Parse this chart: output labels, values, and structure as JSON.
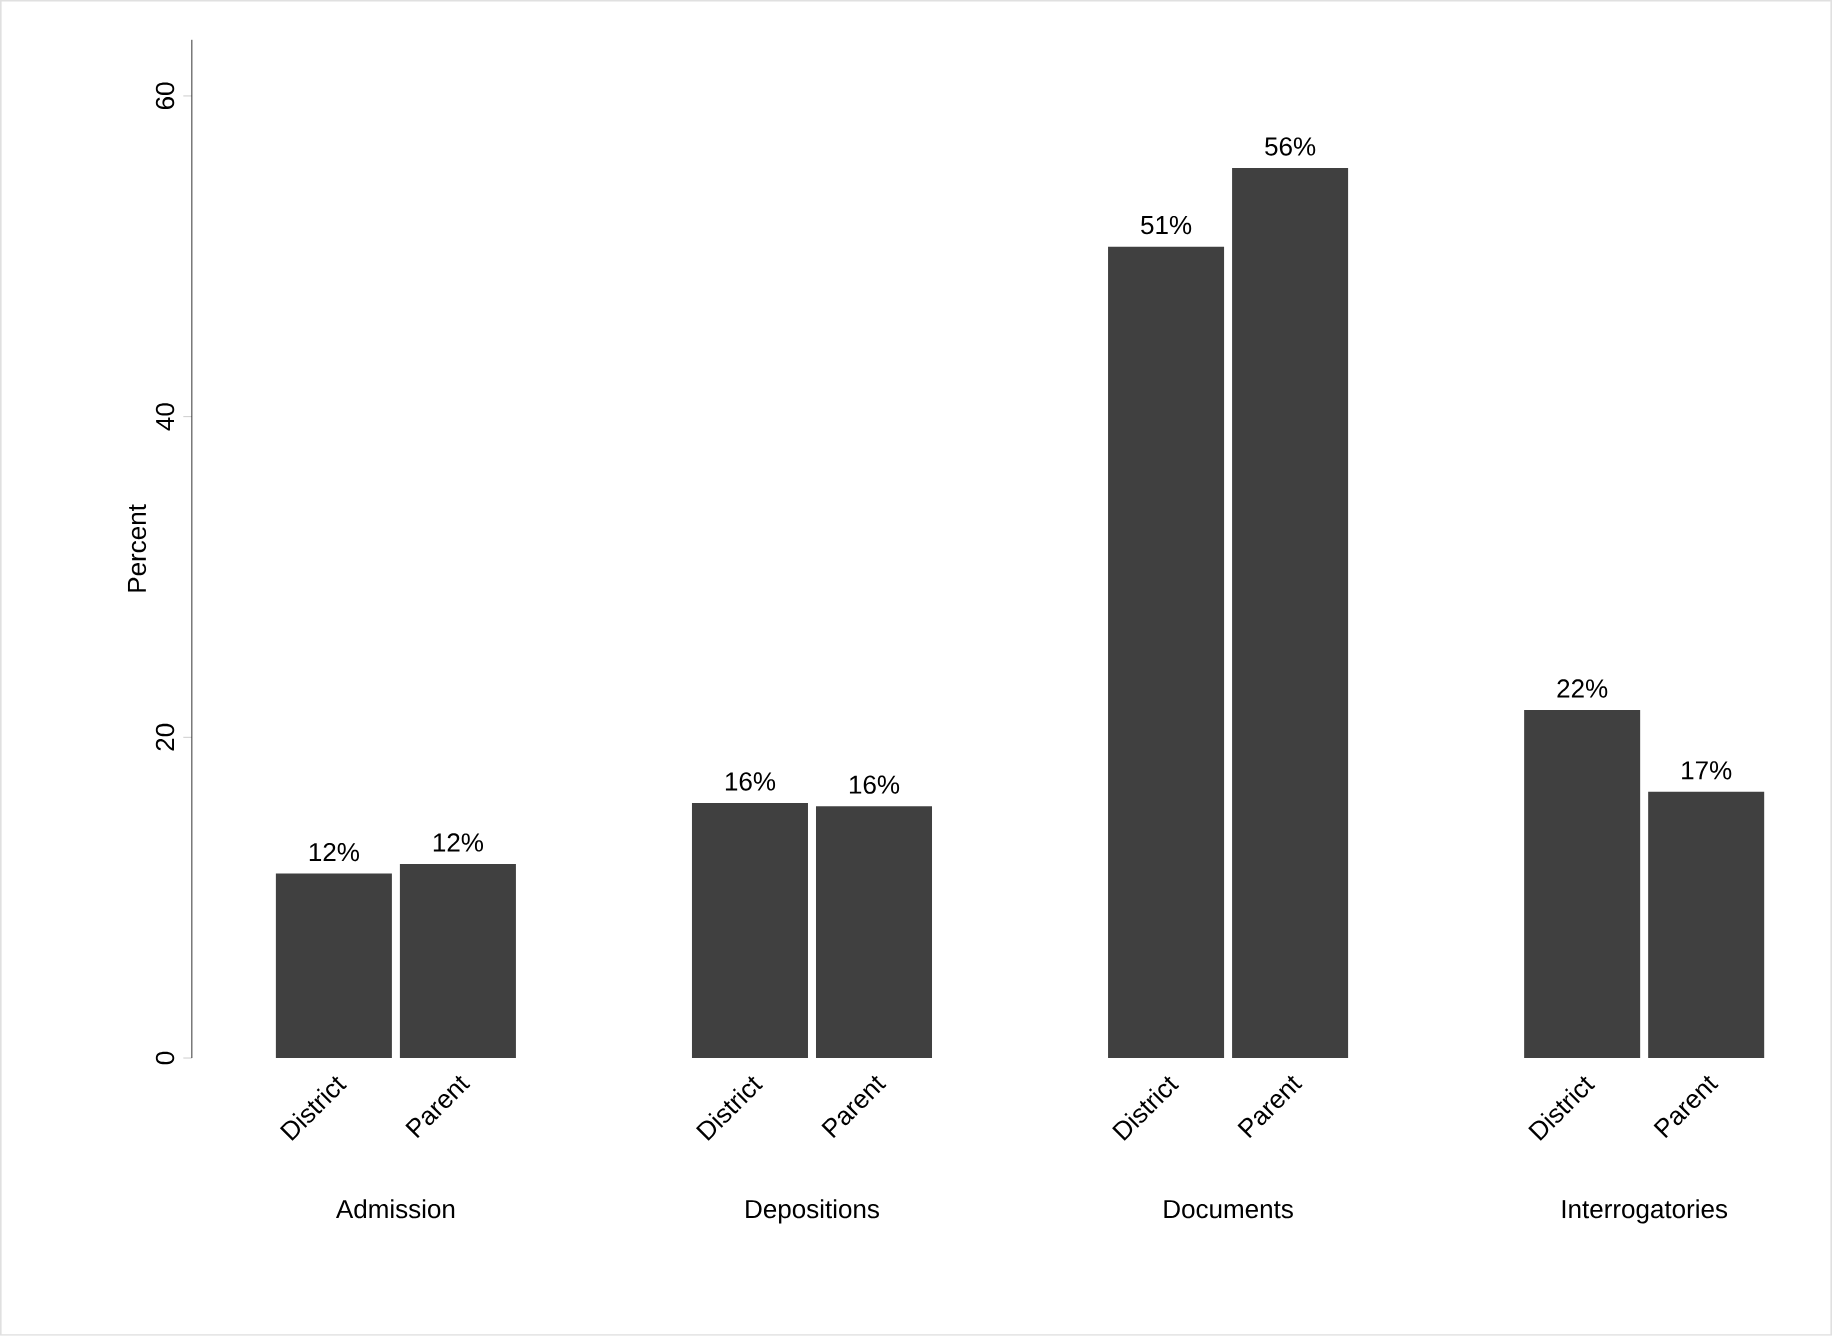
{
  "chart_data": {
    "type": "bar",
    "ylabel": "Percent",
    "categories": [
      "District",
      "Parent",
      "District",
      "Parent",
      "District",
      "Parent",
      "District",
      "Parent"
    ],
    "values": [
      11.5,
      12.1,
      15.9,
      15.7,
      50.6,
      55.5,
      21.7,
      16.6
    ],
    "value_labels": [
      "12%",
      "12%",
      "16%",
      "16%",
      "51%",
      "56%",
      "22%",
      "17%"
    ],
    "color": "#404040",
    "ylim": [
      0,
      63.5
    ],
    "yticks": [
      0,
      20,
      40,
      60
    ],
    "annotations": [
      "Admission",
      "Depositions",
      "Documents",
      "Interrogatories"
    ]
  }
}
